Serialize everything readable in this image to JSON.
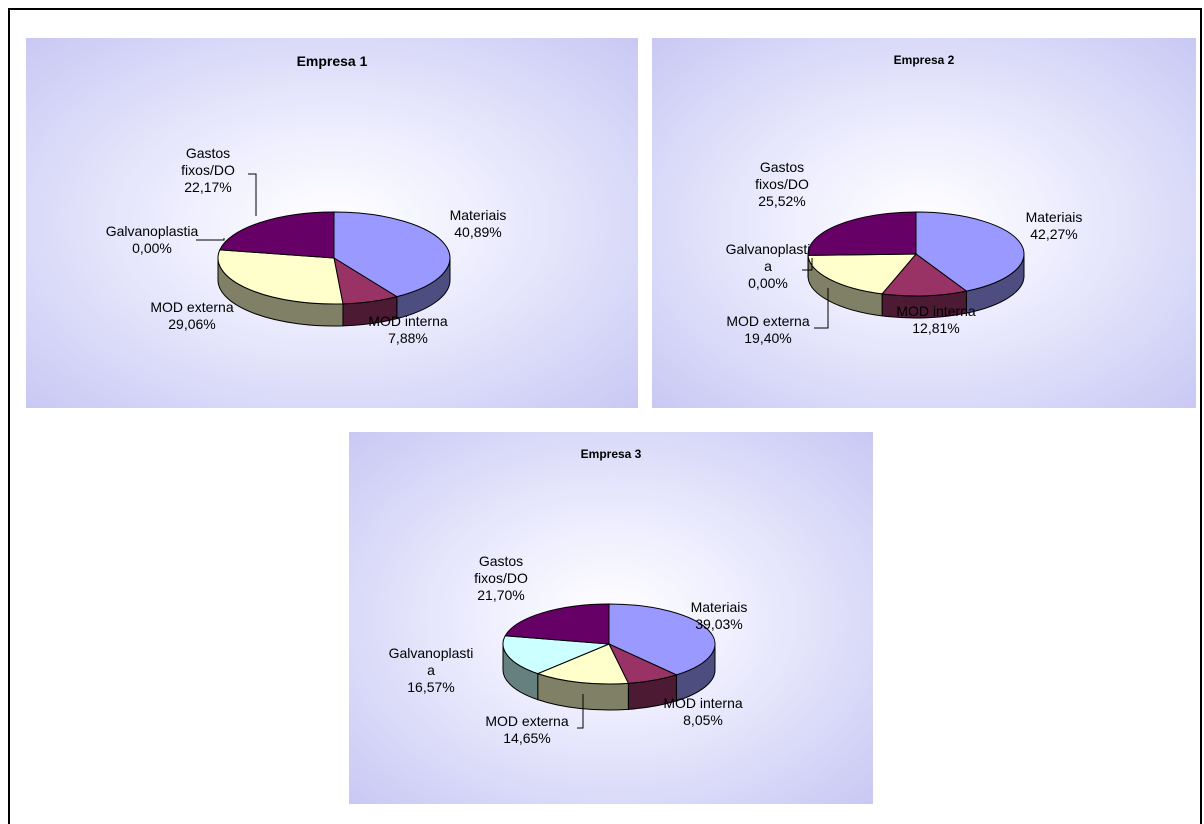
{
  "colors": {
    "Materiais": "#9999ff",
    "MOD interna": "#993366",
    "MOD externa": "#ffffcc",
    "Galvanoplastia": "#ccffff",
    "Gastos fixos/DO": "#660066"
  },
  "chart_data": [
    {
      "type": "pie",
      "title": "Empresa 1",
      "slices": [
        {
          "label": "Materiais",
          "value": 40.89,
          "label_lines": [
            "Materiais",
            "40,89%"
          ]
        },
        {
          "label": "MOD interna",
          "value": 7.88,
          "label_lines": [
            "MOD interna",
            "7,88%"
          ]
        },
        {
          "label": "MOD externa",
          "value": 29.06,
          "label_lines": [
            "MOD externa",
            "29,06%"
          ]
        },
        {
          "label": "Galvanoplastia",
          "value": 0.0,
          "label_lines": [
            "Galvanoplastia",
            "0,00%"
          ]
        },
        {
          "label": "Gastos fixos/DO",
          "value": 22.17,
          "label_lines": [
            "Gastos",
            "fixos/DO",
            "22,17%"
          ]
        }
      ]
    },
    {
      "type": "pie",
      "title": "Empresa 2",
      "slices": [
        {
          "label": "Materiais",
          "value": 42.27,
          "label_lines": [
            "Materiais",
            "42,27%"
          ]
        },
        {
          "label": "MOD interna",
          "value": 12.81,
          "label_lines": [
            "MOD interna",
            "12,81%"
          ]
        },
        {
          "label": "MOD externa",
          "value": 19.4,
          "label_lines": [
            "MOD externa",
            "19,40%"
          ]
        },
        {
          "label": "Galvanoplastia",
          "value": 0.0,
          "label_lines": [
            "Galvanoplasti",
            "a",
            "0,00%"
          ]
        },
        {
          "label": "Gastos fixos/DO",
          "value": 25.52,
          "label_lines": [
            "Gastos",
            "fixos/DO",
            "25,52%"
          ]
        }
      ]
    },
    {
      "type": "pie",
      "title": "Empresa 3",
      "slices": [
        {
          "label": "Materiais",
          "value": 39.03,
          "label_lines": [
            "Materiais",
            "39,03%"
          ]
        },
        {
          "label": "MOD interna",
          "value": 8.05,
          "label_lines": [
            "MOD interna",
            "8,05%"
          ]
        },
        {
          "label": "MOD externa",
          "value": 14.65,
          "label_lines": [
            "MOD externa",
            "14,65%"
          ]
        },
        {
          "label": "Galvanoplastia",
          "value": 16.57,
          "label_lines": [
            "Galvanoplasti",
            "a",
            "16,57%"
          ]
        },
        {
          "label": "Gastos fixos/DO",
          "value": 21.7,
          "label_lines": [
            "Gastos",
            "fixos/DO",
            "21,70%"
          ]
        }
      ]
    }
  ]
}
